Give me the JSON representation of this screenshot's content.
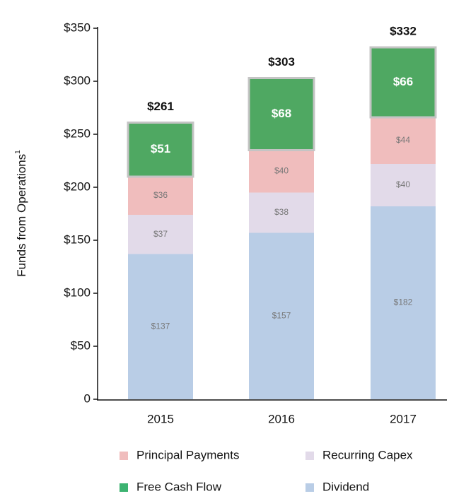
{
  "chart_data": {
    "type": "stacked_bar",
    "ylabel": "Funds from Operations",
    "ylabel_footnote": "1",
    "categories": [
      "2015",
      "2016",
      "2017"
    ],
    "series": [
      {
        "name": "Dividend",
        "color": "#b9cde6",
        "values": [
          137,
          157,
          182
        ],
        "value_labels": [
          "$137",
          "$157",
          "$182"
        ]
      },
      {
        "name": "Recurring Capex",
        "color": "#e2dae9",
        "values": [
          37,
          38,
          40
        ],
        "value_labels": [
          "$37",
          "$38",
          "$40"
        ]
      },
      {
        "name": "Principal Payments",
        "color": "#f0bdbd",
        "values": [
          36,
          40,
          44
        ],
        "value_labels": [
          "$36",
          "$40",
          "$44"
        ]
      },
      {
        "name": "Free Cash Flow",
        "color": "#4fa862",
        "values": [
          51,
          68,
          66
        ],
        "value_labels": [
          "$51",
          "$68",
          "$66"
        ]
      }
    ],
    "totals": {
      "values": [
        261,
        303,
        332
      ],
      "value_labels": [
        "$261",
        "$303",
        "$332"
      ]
    },
    "ylim": [
      0,
      350
    ],
    "yticks": [
      0,
      {
        "value": 50,
        "label": "$50"
      },
      {
        "value": 100,
        "label": "$100"
      },
      {
        "value": 150,
        "label": "$150"
      },
      {
        "value": 200,
        "label": "$200"
      },
      {
        "value": 250,
        "label": "$250"
      },
      {
        "value": 300,
        "label": "$300"
      },
      {
        "value": 350,
        "label": "$350"
      }
    ]
  }
}
